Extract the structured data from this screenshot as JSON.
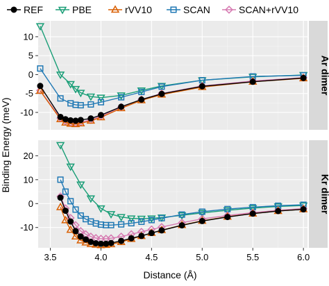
{
  "chart_data": {
    "type": "line",
    "xlabel": "Distance (Å)",
    "ylabel": "Binding Energy (meV)",
    "x_ticks": [
      "3.5",
      "4.0",
      "4.5",
      "5.0",
      "5.5",
      "6.0"
    ],
    "xlim": [
      3.38,
      6.04
    ],
    "legend": {
      "position": "top",
      "entries": [
        {
          "name": "REF",
          "color": "#000000",
          "marker": "circle"
        },
        {
          "name": "PBE",
          "color": "#1a9e77",
          "marker": "triangle-down"
        },
        {
          "name": "rVV10",
          "color": "#d95f02",
          "marker": "triangle-up"
        },
        {
          "name": "SCAN",
          "color": "#1f78b4",
          "marker": "square"
        },
        {
          "name": "SCAN+rVV10",
          "color": "#d67ab1",
          "marker": "diamond"
        }
      ]
    },
    "panels": [
      {
        "strip": "Ar dimer",
        "ylim": [
          -14.6,
          14.2
        ],
        "y_ticks": [
          10,
          5,
          0,
          -5,
          -10
        ],
        "series": [
          {
            "name": "REF",
            "x": [
              3.4,
              3.6,
              3.65,
              3.7,
              3.75,
              3.8,
              3.9,
              4.0,
              4.2,
              4.4,
              4.6,
              5.0,
              5.5,
              6.0
            ],
            "y": [
              -3.0,
              -11.2,
              -11.8,
              -12.1,
              -12.2,
              -12.0,
              -11.6,
              -10.7,
              -8.5,
              -6.6,
              -5.1,
              -3.1,
              -1.9,
              -0.9
            ]
          },
          {
            "name": "PBE",
            "x": [
              3.4,
              3.6,
              3.7,
              3.75,
              3.8,
              3.9,
              4.0,
              4.2,
              4.4,
              4.6,
              5.0,
              5.5,
              6.0
            ],
            "y": [
              12.8,
              0.0,
              -2.5,
              -3.8,
              -4.8,
              -5.8,
              -6.1,
              -5.5,
              -4.2,
              -3.0,
              -1.5,
              -0.6,
              -0.1
            ]
          },
          {
            "name": "rVV10",
            "x": [
              3.4,
              3.6,
              3.65,
              3.7,
              3.75,
              3.8,
              3.9,
              4.0,
              4.2,
              4.4,
              4.6,
              5.0,
              5.5,
              6.0
            ],
            "y": [
              -4.3,
              -11.8,
              -12.7,
              -13.0,
              -13.1,
              -12.9,
              -12.2,
              -11.3,
              -8.9,
              -6.8,
              -5.3,
              -3.3,
              -1.9,
              -1.0
            ]
          },
          {
            "name": "SCAN",
            "x": [
              3.4,
              3.6,
              3.7,
              3.75,
              3.8,
              3.9,
              4.0,
              4.2,
              4.4,
              4.6,
              5.0,
              5.5,
              6.0
            ],
            "y": [
              1.6,
              -6.3,
              -7.6,
              -8.0,
              -8.1,
              -7.9,
              -7.3,
              -6.0,
              -4.6,
              -3.2,
              -1.5,
              -0.5,
              -0.2
            ]
          },
          {
            "name": "SCAN+rVV10",
            "x": [
              3.4,
              3.6,
              3.65,
              3.7,
              3.75,
              3.8,
              3.9,
              4.0,
              4.2,
              4.4,
              4.6,
              5.0,
              5.5,
              6.0
            ],
            "y": [
              -4.2,
              -11.5,
              -12.3,
              -12.7,
              -12.8,
              -12.6,
              -12.0,
              -11.0,
              -8.6,
              -6.6,
              -5.0,
              -3.0,
              -1.7,
              -0.8
            ]
          }
        ]
      },
      {
        "strip": "Kr dimer",
        "ylim": [
          -18.5,
          26.5
        ],
        "y_ticks": [
          20,
          10,
          0,
          -10
        ],
        "series": [
          {
            "name": "REF",
            "x": [
              3.6,
              3.65,
              3.7,
              3.75,
              3.8,
              3.85,
              3.9,
              3.95,
              4.0,
              4.05,
              4.1,
              4.2,
              4.3,
              4.4,
              4.5,
              4.6,
              4.8,
              5.0,
              5.25,
              5.5,
              5.75,
              6.0
            ],
            "y": [
              2.5,
              -3.0,
              -7.5,
              -11.5,
              -13.8,
              -15.0,
              -16.0,
              -16.6,
              -16.8,
              -16.8,
              -16.5,
              -15.6,
              -14.5,
              -13.5,
              -12.3,
              -11.2,
              -9.1,
              -7.3,
              -5.6,
              -4.2,
              -3.1,
              -2.4
            ]
          },
          {
            "name": "PBE",
            "x": [
              3.6,
              3.7,
              3.8,
              3.9,
              4.0,
              4.1,
              4.2,
              4.3,
              4.4,
              4.5,
              4.6,
              4.8,
              5.0,
              5.25,
              5.5,
              5.75,
              6.0
            ],
            "y": [
              24.5,
              15.5,
              8.0,
              2.2,
              -2.0,
              -4.4,
              -5.6,
              -6.2,
              -6.3,
              -6.2,
              -5.8,
              -4.9,
              -3.9,
              -2.8,
              -1.9,
              -1.2,
              -0.8
            ]
          },
          {
            "name": "rVV10",
            "x": [
              3.6,
              3.65,
              3.7,
              3.75,
              3.8,
              3.85,
              3.9,
              3.95,
              4.0,
              4.05,
              4.1,
              4.2,
              4.3,
              4.4,
              4.5,
              4.6,
              4.8,
              5.0,
              5.25,
              5.5,
              5.75,
              6.0
            ],
            "y": [
              -1.5,
              -7.0,
              -11.0,
              -13.8,
              -15.4,
              -16.3,
              -16.9,
              -17.2,
              -17.4,
              -17.3,
              -17.0,
              -16.1,
              -14.8,
              -13.6,
              -12.3,
              -11.1,
              -9.0,
              -7.2,
              -5.5,
              -4.2,
              -3.1,
              -2.4
            ]
          },
          {
            "name": "SCAN",
            "x": [
              3.6,
              3.65,
              3.7,
              3.75,
              3.8,
              3.85,
              3.9,
              3.95,
              4.0,
              4.05,
              4.1,
              4.2,
              4.3,
              4.4,
              4.5,
              4.6,
              4.8,
              5.0,
              5.25,
              5.5,
              5.75,
              6.0
            ],
            "y": [
              10.0,
              5.0,
              1.0,
              -2.5,
              -5.0,
              -6.5,
              -7.5,
              -8.3,
              -8.8,
              -9.0,
              -9.0,
              -8.7,
              -8.2,
              -7.6,
              -6.9,
              -6.1,
              -4.6,
              -3.4,
              -2.3,
              -1.5,
              -0.9,
              -0.5
            ]
          },
          {
            "name": "SCAN+rVV10",
            "x": [
              3.6,
              3.65,
              3.7,
              3.75,
              3.8,
              3.85,
              3.9,
              3.95,
              4.0,
              4.05,
              4.1,
              4.2,
              4.3,
              4.4,
              4.5,
              4.6,
              4.8,
              5.0,
              5.25,
              5.5,
              5.75,
              6.0
            ],
            "y": [
              3.0,
              -2.0,
              -6.0,
              -9.0,
              -11.5,
              -12.8,
              -13.8,
              -14.4,
              -14.7,
              -14.7,
              -14.5,
              -13.8,
              -12.8,
              -11.8,
              -10.8,
              -9.8,
              -8.0,
              -6.4,
              -5.0,
              -3.8,
              -2.8,
              -2.1
            ]
          }
        ]
      }
    ]
  }
}
